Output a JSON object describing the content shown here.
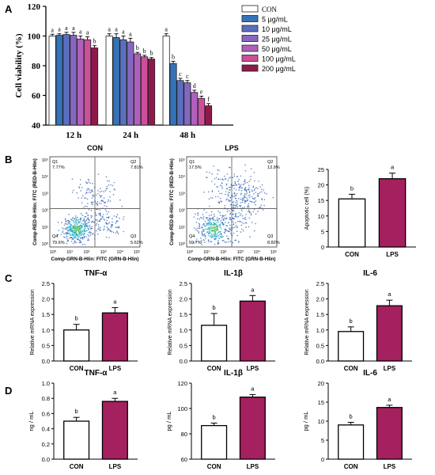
{
  "colors": {
    "con": "#ffffff",
    "lps": "#a5205e",
    "dot_blue": "#2b5fb4",
    "dot_cyan": "#1fa9c9",
    "dot_green": "#3cb55a",
    "doses": [
      "#ffffff",
      "#3573b9",
      "#5b6fc0",
      "#8567c0",
      "#b15fbd",
      "#cd4f9a",
      "#8e1a4b"
    ]
  },
  "panels": {
    "A": "A",
    "B": "B",
    "C": "C",
    "D": "D"
  },
  "chart_data": [
    {
      "id": "A",
      "type": "bar",
      "title": "",
      "xlabel": "",
      "ylabel": "Cell viability (%)",
      "ylim": [
        40,
        120
      ],
      "yticks": [
        "40",
        "60",
        "80",
        "100",
        "120"
      ],
      "categories": [
        "12 h",
        "24 h",
        "48 h"
      ],
      "series": [
        {
          "name": "CON",
          "values": [
            100,
            100,
            100
          ],
          "errors": [
            1.2,
            1.5,
            1.5
          ],
          "letters": [
            "a",
            "a",
            "a"
          ]
        },
        {
          "name": "5 μg/mL",
          "values": [
            100.5,
            99,
            81.5
          ],
          "errors": [
            1.0,
            2.5,
            1.5
          ],
          "letters": [
            "a",
            "a",
            "b"
          ]
        },
        {
          "name": "10 μg/mL",
          "values": [
            101,
            97.5,
            70
          ],
          "errors": [
            1.5,
            2.5,
            1.5
          ],
          "letters": [
            "a",
            "a",
            "c"
          ]
        },
        {
          "name": "25 μg/mL",
          "values": [
            100.5,
            96,
            68.5
          ],
          "errors": [
            2.0,
            2.5,
            1.5
          ],
          "letters": [
            "a",
            "a",
            "c"
          ]
        },
        {
          "name": "50 μg/mL",
          "values": [
            98,
            88,
            62
          ],
          "errors": [
            2.0,
            1.0,
            1.5
          ],
          "letters": [
            "a",
            "b",
            "d"
          ]
        },
        {
          "name": "100 μg/mL",
          "values": [
            97.5,
            86,
            58
          ],
          "errors": [
            2.0,
            1.0,
            1.5
          ],
          "letters": [
            "a",
            "b",
            "e"
          ]
        },
        {
          "name": "200 μg/mL",
          "values": [
            92,
            84.5,
            53
          ],
          "errors": [
            1.5,
            1.0,
            1.5
          ],
          "letters": [
            "b",
            "b",
            "f"
          ]
        }
      ]
    },
    {
      "id": "B-flow",
      "type": "scatter",
      "plots": [
        {
          "title": "CON",
          "q1": "Q1",
          "q1_value": "7.77%",
          "q2": "Q2",
          "q2_value": "7.81%",
          "q3": "Q3",
          "q3_value": "5.62%",
          "q4": "Q4",
          "q4_value": "79.6%"
        },
        {
          "title": "LPS",
          "q1": "Q1",
          "q1_value": "17.5%",
          "q2": "Q2",
          "q2_value": "13.9%",
          "q3": "Q3",
          "q3_value": "8.82%",
          "q4": "Q4",
          "q4_value": "59.7%"
        }
      ],
      "xlabel": "Comp-GRN-B-Hlin: FITC (GRN-B-Hlin)",
      "ylabel": "Comp-RED-B-Hlin: FITC (RED-B-Hlin)",
      "xticks": [
        "10⁰",
        "10¹",
        "10²",
        "10³",
        "10⁴",
        "10⁵"
      ],
      "yticks": [
        "10⁰",
        "10¹",
        "10²",
        "10³",
        "10⁴",
        "10⁵"
      ]
    },
    {
      "id": "B-bar",
      "type": "bar",
      "ylabel": "Apoptotic cell (%)",
      "ylim": [
        0,
        25
      ],
      "yticks": [
        "0",
        "5",
        "10",
        "15",
        "20",
        "25"
      ],
      "categories": [
        "CON",
        "LPS"
      ],
      "values": [
        15.5,
        22
      ],
      "errors": [
        1.5,
        1.8
      ],
      "letters": [
        "b",
        "a"
      ]
    },
    {
      "id": "C-tnf",
      "type": "bar",
      "title": "TNF-α",
      "ylabel": "Relative mRNA expression",
      "ylim": [
        0,
        2.5
      ],
      "yticks": [
        "0.0",
        "0.5",
        "1.0",
        "1.5",
        "2.0",
        "2.5"
      ],
      "categories": [
        "CON",
        "LPS"
      ],
      "values": [
        1.0,
        1.55
      ],
      "errors": [
        0.18,
        0.17
      ],
      "letters": [
        "b",
        "a"
      ]
    },
    {
      "id": "C-il1b",
      "type": "bar",
      "title": "IL-1β",
      "ylabel": "Relative mRNA expression",
      "ylim": [
        0,
        2.5
      ],
      "yticks": [
        "0.0",
        "0.5",
        "1.0",
        "1.5",
        "2.0",
        "2.5"
      ],
      "categories": [
        "CON",
        "LPS"
      ],
      "values": [
        1.15,
        1.93
      ],
      "errors": [
        0.38,
        0.18
      ],
      "letters": [
        "b",
        "a"
      ]
    },
    {
      "id": "C-il6",
      "type": "bar",
      "title": "IL-6",
      "ylabel": "Relative mRNA expression",
      "ylim": [
        0,
        2.5
      ],
      "yticks": [
        "0.0",
        "0.5",
        "1.0",
        "1.5",
        "2.0",
        "2.5"
      ],
      "categories": [
        "CON",
        "LPS"
      ],
      "values": [
        0.95,
        1.78
      ],
      "errors": [
        0.15,
        0.18
      ],
      "letters": [
        "b",
        "a"
      ]
    },
    {
      "id": "D-tnf",
      "type": "bar",
      "title": "TNF-α",
      "ylabel": "ng / mL",
      "ylim": [
        0,
        1.0
      ],
      "yticks": [
        "0.0",
        "0.2",
        "0.4",
        "0.6",
        "0.8",
        "1.0"
      ],
      "categories": [
        "CON",
        "LPS"
      ],
      "values": [
        0.5,
        0.76
      ],
      "errors": [
        0.05,
        0.04
      ],
      "letters": [
        "b",
        "a"
      ]
    },
    {
      "id": "D-il1b",
      "type": "bar",
      "title": "IL-1β",
      "ylabel": "pg / mL",
      "ylim": [
        60,
        120
      ],
      "yticks": [
        "60",
        "80",
        "100",
        "120"
      ],
      "categories": [
        "CON",
        "LPS"
      ],
      "values": [
        86.5,
        109
      ],
      "errors": [
        2.0,
        2.0
      ],
      "letters": [
        "b",
        "a"
      ]
    },
    {
      "id": "D-il6",
      "type": "bar",
      "title": "IL-6",
      "ylabel": "pg / mL",
      "ylim": [
        0,
        20
      ],
      "yticks": [
        "0",
        "5",
        "10",
        "15",
        "20"
      ],
      "categories": [
        "CON",
        "LPS"
      ],
      "values": [
        9.0,
        13.6
      ],
      "errors": [
        0.7,
        0.6
      ],
      "letters": [
        "b",
        "a"
      ]
    }
  ]
}
